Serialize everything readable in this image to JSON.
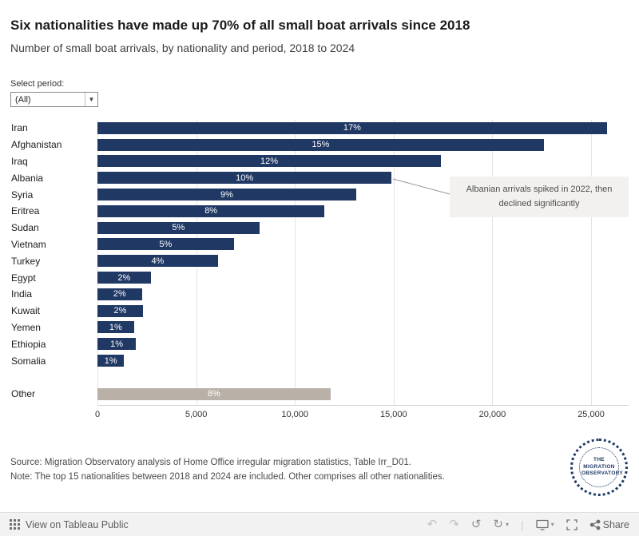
{
  "header": {
    "title": "Six nationalities have made up 70% of all small boat arrivals since 2018",
    "subtitle": "Number of small boat arrivals, by nationality and period, 2018 to 2024"
  },
  "filter": {
    "label": "Select period:",
    "value": "(All)",
    "caret": "▼"
  },
  "chart_data": {
    "type": "bar",
    "orientation": "horizontal",
    "title": "Six nationalities have made up 70% of all small boat arrivals since 2018",
    "subtitle": "Number of small boat arrivals, by nationality and period, 2018 to 2024",
    "categories": [
      "Iran",
      "Afghanistan",
      "Iraq",
      "Albania",
      "Syria",
      "Eritrea",
      "Sudan",
      "Vietnam",
      "Turkey",
      "Egypt",
      "India",
      "Kuwait",
      "Yemen",
      "Ethiopia",
      "Somalia",
      "Other"
    ],
    "values": [
      25800,
      22600,
      17400,
      14900,
      13100,
      11500,
      8200,
      6900,
      6100,
      2700,
      2250,
      2300,
      1850,
      1950,
      1350,
      11800
    ],
    "bar_labels": [
      "17%",
      "15%",
      "12%",
      "10%",
      "9%",
      "8%",
      "5%",
      "5%",
      "4%",
      "2%",
      "2%",
      "2%",
      "1%",
      "1%",
      "1%",
      "8%"
    ],
    "xlim": [
      0,
      26900
    ],
    "x_ticks": [
      0,
      5000,
      10000,
      15000,
      20000,
      25000
    ],
    "x_tick_labels": [
      "0",
      "5,000",
      "10,000",
      "15,000",
      "20,000",
      "25,000"
    ],
    "bar_color": "#1f3864",
    "other_color": "#b9b1a8",
    "grid": true,
    "annotation": {
      "text": "Albanian arrivals spiked in 2022, then declined significantly",
      "target_category": "Albania"
    }
  },
  "notes": {
    "source": "Source: Migration Observatory analysis of Home Office irregular migration statistics, Table Irr_D01.",
    "note": "Note: The top 15 nationalities between 2018 and 2024 are included. Other comprises all other nationalities."
  },
  "logo": {
    "label": "THE MIGRATION OBSERVATORY"
  },
  "toolbar": {
    "view_label": "View on Tableau Public",
    "share_label": "Share",
    "glyphs": {
      "undo": "↶",
      "redo": "↷",
      "reset": "↺",
      "refresh": "↻",
      "caret": "▾"
    }
  }
}
